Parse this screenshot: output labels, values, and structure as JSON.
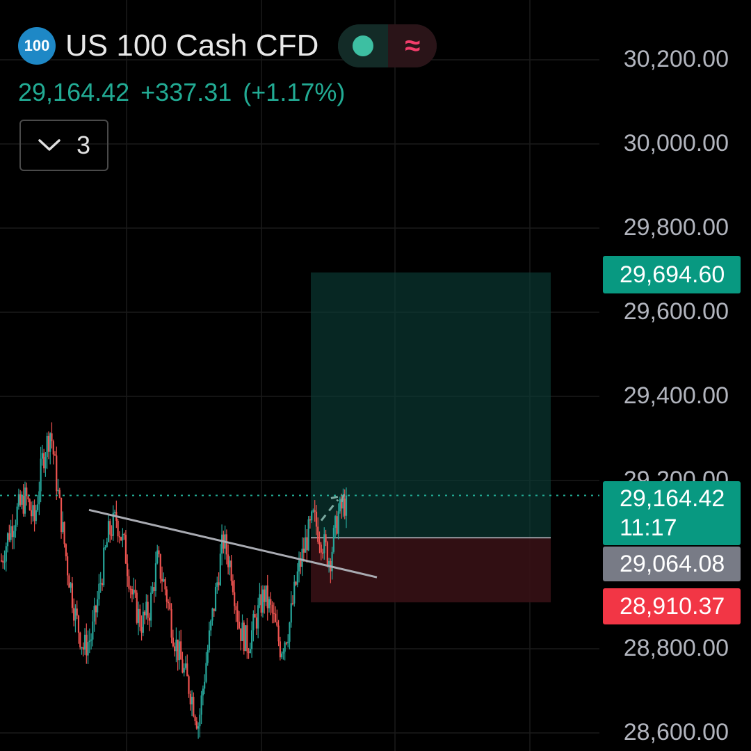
{
  "header": {
    "logo_text": "100",
    "symbol_title": "US 100 Cash CFD",
    "market_status_icon": "green-dot-icon",
    "indicator_icon": "approx-equal-icon"
  },
  "quote": {
    "last_price": "29,164.42",
    "change": "+337.31",
    "change_pct": "(+1.17%)",
    "up_color": "#22ab94"
  },
  "indicators_toggle": {
    "icon": "chevron-down-icon",
    "count": "3"
  },
  "price_axis": {
    "labels": [
      "30,200.00",
      "30,000.00",
      "29,800.00",
      "29,600.00",
      "29,400.00",
      "29,200.00",
      "28,800.00",
      "28,600.00"
    ]
  },
  "price_tags": {
    "target": {
      "value": "29,694.60",
      "color": "#089981"
    },
    "current": {
      "value": "29,164.42",
      "countdown": "11:17",
      "color": "#089981"
    },
    "entry": {
      "value": "29,064.08",
      "color": "#787b86"
    },
    "stop": {
      "value": "28,910.37",
      "color": "#f23645"
    }
  },
  "chart_data": {
    "type": "candlestick",
    "ylim": [
      28590,
      30270
    ],
    "y_ticks": [
      30200,
      30000,
      29800,
      29600,
      29400,
      29200,
      28800,
      28600
    ],
    "series_shape": [
      29010,
      29080,
      29130,
      29160,
      29100,
      29250,
      29320,
      29150,
      29000,
      28880,
      28800,
      28830,
      28950,
      29070,
      29110,
      29040,
      28920,
      28860,
      28890,
      29010,
      28940,
      28830,
      28760,
      28700,
      28620,
      28780,
      28920,
      29060,
      28990,
      28850,
      28810,
      28870,
      28930,
      28880,
      28800,
      28850,
      28970,
      29050,
      29110,
      29060,
      29010,
      29120,
      29150
    ],
    "trendline": {
      "from": 29130,
      "to": 28970
    },
    "long_position": {
      "target": 29694.6,
      "entry": 29064.08,
      "stop": 28910.37
    },
    "current_price": 29164.42
  }
}
